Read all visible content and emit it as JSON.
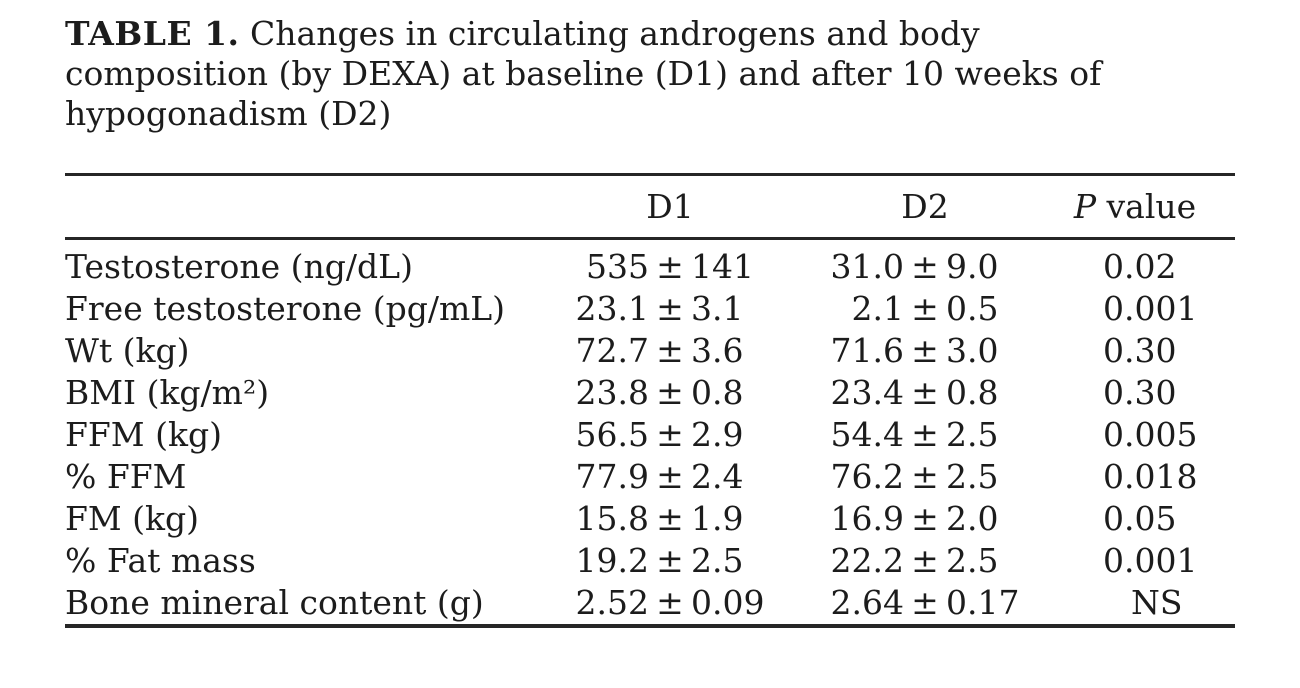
{
  "caption": {
    "label": "TABLE 1.",
    "lines": [
      "Changes in circulating androgens and body",
      "composition (by DEXA) at baseline (D1) and after 10 weeks of",
      "hypogonadism (D2)"
    ],
    "full_text": "TABLE 1. Changes in circulating androgens and body composition (by DEXA) at baseline (D1) and after 10 weeks of hypogonadism (D2)"
  },
  "table": {
    "pm_symbol": "±",
    "columns": {
      "parameter": "",
      "d1": "D1",
      "d2": "D2",
      "p_symbol": "P",
      "p_rest": "value"
    },
    "rows": [
      {
        "label": "Testosterone (ng/dL)",
        "d1_mean": "535",
        "d1_sd": "141",
        "d2_mean": "31.0",
        "d2_sd": "9.0",
        "p": "0.02"
      },
      {
        "label": "Free testosterone (pg/mL)",
        "d1_mean": "23.1",
        "d1_sd": "3.1",
        "d2_mean": "2.1",
        "d2_sd": "0.5",
        "p": "0.001"
      },
      {
        "label": "Wt (kg)",
        "d1_mean": "72.7",
        "d1_sd": "3.6",
        "d2_mean": "71.6",
        "d2_sd": "3.0",
        "p": "0.30"
      },
      {
        "label": "BMI (kg/m²)",
        "d1_mean": "23.8",
        "d1_sd": "0.8",
        "d2_mean": "23.4",
        "d2_sd": "0.8",
        "p": "0.30"
      },
      {
        "label": "FFM (kg)",
        "d1_mean": "56.5",
        "d1_sd": "2.9",
        "d2_mean": "54.4",
        "d2_sd": "2.5",
        "p": "0.005"
      },
      {
        "label": "% FFM",
        "d1_mean": "77.9",
        "d1_sd": "2.4",
        "d2_mean": "76.2",
        "d2_sd": "2.5",
        "p": "0.018"
      },
      {
        "label": "FM (kg)",
        "d1_mean": "15.8",
        "d1_sd": "1.9",
        "d2_mean": "16.9",
        "d2_sd": "2.0",
        "p": "0.05"
      },
      {
        "label": "% Fat mass",
        "d1_mean": "19.2",
        "d1_sd": "2.5",
        "d2_mean": "22.2",
        "d2_sd": "2.5",
        "p": "0.001"
      },
      {
        "label": "Bone mineral content (g)",
        "d1_mean": "2.52",
        "d1_sd": "0.09",
        "d2_mean": "2.64",
        "d2_sd": "0.17",
        "p": "NS"
      }
    ]
  }
}
